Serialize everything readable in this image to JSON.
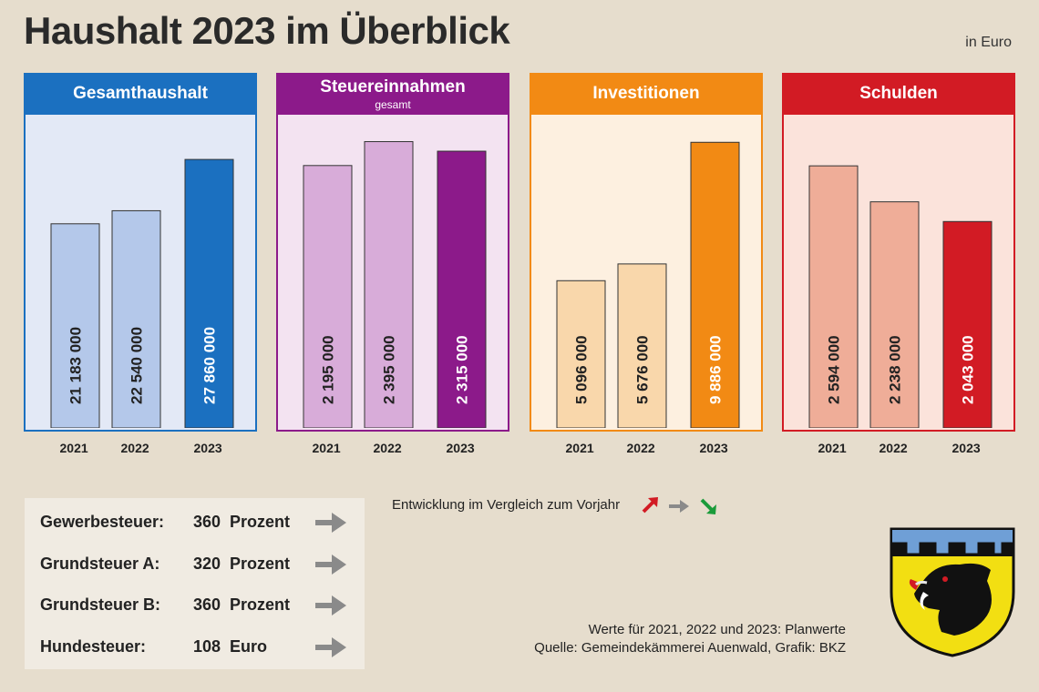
{
  "title": "Haushalt 2023 im Überblick",
  "unit": "in Euro",
  "chart_data": [
    {
      "type": "bar",
      "title": "Gesamthaushalt",
      "subtitle": "",
      "categories": [
        "2021",
        "2022",
        "2023"
      ],
      "values": [
        21183000,
        22540000,
        27860000
      ],
      "labels": [
        "21 183 000",
        "22 540 000",
        "27 860 000"
      ],
      "ylim": [
        0,
        32500000
      ],
      "colors": {
        "head": "#1b70c0",
        "bg": "#e3e9f6",
        "light": "#b4c8ea",
        "dark": "#1b70c0"
      }
    },
    {
      "type": "bar",
      "title": "Steuereinnahmen",
      "subtitle": "gesamt",
      "categories": [
        "2021",
        "2022",
        "2023"
      ],
      "values": [
        2195000,
        2395000,
        2315000
      ],
      "labels": [
        "2 195 000",
        "2 395 000",
        "2 315 000"
      ],
      "ylim": [
        0,
        2620000
      ],
      "colors": {
        "head": "#8c1a8a",
        "bg": "#f3e3f1",
        "light": "#d8acd9",
        "dark": "#8c1a8a"
      }
    },
    {
      "type": "bar",
      "title": "Investitionen",
      "subtitle": "",
      "categories": [
        "2021",
        "2022",
        "2023"
      ],
      "values": [
        5096000,
        5676000,
        9886000
      ],
      "labels": [
        "5 096 000",
        "5 676 000",
        "9 886 000"
      ],
      "ylim": [
        0,
        10840000
      ],
      "colors": {
        "head": "#f28a14",
        "bg": "#fdf0e0",
        "light": "#f9d7ab",
        "dark": "#f28a14"
      }
    },
    {
      "type": "bar",
      "title": "Schulden",
      "subtitle": "",
      "categories": [
        "2021",
        "2022",
        "2023"
      ],
      "values": [
        2594000,
        2238000,
        2043000
      ],
      "labels": [
        "2 594 000",
        "2 238 000",
        "2 043 000"
      ],
      "ylim": [
        0,
        3100000
      ],
      "colors": {
        "head": "#d21b24",
        "bg": "#fbe3db",
        "light": "#efad98",
        "dark": "#d21b24"
      }
    }
  ],
  "taxes": [
    {
      "label": "Gewerbesteuer:",
      "value": "360",
      "unit": "Prozent",
      "trend": "same"
    },
    {
      "label": "Grundsteuer A:",
      "value": "320",
      "unit": "Prozent",
      "trend": "same"
    },
    {
      "label": "Grundsteuer B:",
      "value": "360",
      "unit": "Prozent",
      "trend": "same"
    },
    {
      "label": "Hundesteuer:",
      "value": "108",
      "unit": "Euro",
      "trend": "same"
    }
  ],
  "legend": {
    "text": "Entwicklung im Vergleich zum Vorjahr",
    "up_color": "#d21b24",
    "same_color": "#8a8a8a",
    "down_color": "#1a9b3a"
  },
  "footnote": {
    "line1": "Werte für 2021, 2022 und 2023: Planwerte",
    "line2": "Quelle: Gemeindekämmerei Auenwald, Grafik: BKZ"
  }
}
